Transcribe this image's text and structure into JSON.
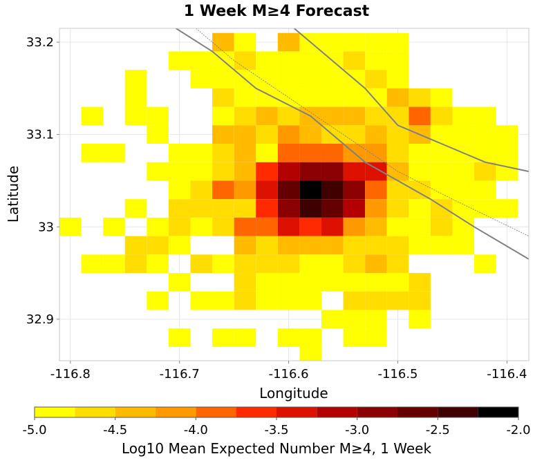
{
  "chart_data": {
    "type": "heatmap",
    "title": "1 Week M≥4 Forecast",
    "xlabel": "Longitude",
    "ylabel": "Latitude",
    "xlim": [
      -116.81,
      -116.38
    ],
    "ylim": [
      32.855,
      33.215
    ],
    "xticks": [
      -116.8,
      -116.7,
      -116.6,
      -116.5,
      -116.4
    ],
    "xtick_labels": [
      "-116.8",
      "-116.7",
      "-116.6",
      "-116.5",
      "-116.4"
    ],
    "yticks": [
      32.9,
      33.0,
      33.1,
      33.2
    ],
    "ytick_labels": [
      "32.9",
      "33",
      "33.1",
      "33.2"
    ],
    "grid": true,
    "cell_size_deg": 0.02,
    "grid_origin": {
      "lon": -116.81,
      "lat": 33.21
    },
    "grid_columns": 21,
    "value_legend": {
      "0": "below -5.0 (no color)",
      "1": "-5.0 to -4.75",
      "12": "-2.25 to -2.0"
    },
    "grid_rows": [
      [
        0,
        0,
        0,
        0,
        0,
        0,
        0,
        3,
        1,
        0,
        3,
        1,
        1,
        1,
        1,
        1,
        0,
        0,
        0,
        0,
        0
      ],
      [
        0,
        0,
        0,
        0,
        0,
        1,
        1,
        1,
        2,
        1,
        1,
        1,
        1,
        2,
        1,
        1,
        0,
        0,
        0,
        0,
        0
      ],
      [
        0,
        0,
        0,
        1,
        0,
        0,
        1,
        1,
        1,
        1,
        1,
        1,
        1,
        1,
        2,
        1,
        0,
        0,
        0,
        0,
        0
      ],
      [
        0,
        0,
        0,
        1,
        0,
        0,
        0,
        2,
        1,
        1,
        1,
        1,
        1,
        1,
        1,
        3,
        2,
        1,
        0,
        0,
        0
      ],
      [
        0,
        1,
        0,
        1,
        1,
        0,
        0,
        1,
        2,
        3,
        2,
        3,
        3,
        3,
        2,
        2,
        5,
        2,
        1,
        1,
        0
      ],
      [
        0,
        0,
        0,
        0,
        1,
        0,
        0,
        3,
        3,
        2,
        4,
        3,
        2,
        2,
        3,
        2,
        3,
        1,
        1,
        1,
        1
      ],
      [
        0,
        1,
        1,
        0,
        0,
        1,
        1,
        2,
        3,
        1,
        5,
        5,
        5,
        4,
        4,
        2,
        1,
        1,
        1,
        1,
        1
      ],
      [
        0,
        0,
        0,
        0,
        1,
        1,
        1,
        2,
        3,
        6,
        8,
        9,
        9,
        7,
        7,
        3,
        1,
        1,
        1,
        2,
        1
      ],
      [
        0,
        0,
        0,
        0,
        0,
        1,
        2,
        5,
        4,
        7,
        10,
        12,
        11,
        9,
        5,
        2,
        2,
        1,
        1,
        1,
        0
      ],
      [
        0,
        0,
        0,
        1,
        0,
        2,
        2,
        2,
        2,
        6,
        9,
        11,
        10,
        8,
        4,
        2,
        1,
        2,
        1,
        1,
        1
      ],
      [
        1,
        0,
        1,
        0,
        1,
        2,
        1,
        2,
        5,
        5,
        7,
        6,
        7,
        4,
        3,
        1,
        1,
        2,
        1,
        0,
        0
      ],
      [
        0,
        0,
        0,
        2,
        2,
        1,
        0,
        0,
        3,
        2,
        3,
        3,
        3,
        2,
        2,
        2,
        1,
        1,
        1,
        0,
        0
      ],
      [
        0,
        1,
        1,
        2,
        1,
        0,
        2,
        1,
        2,
        2,
        2,
        1,
        1,
        2,
        3,
        2,
        0,
        0,
        0,
        1,
        0
      ],
      [
        0,
        0,
        0,
        0,
        0,
        1,
        0,
        0,
        2,
        1,
        1,
        1,
        1,
        1,
        1,
        1,
        2,
        0,
        0,
        0,
        0
      ],
      [
        0,
        0,
        0,
        0,
        1,
        0,
        1,
        1,
        2,
        1,
        1,
        1,
        0,
        2,
        2,
        2,
        2,
        0,
        0,
        0,
        0
      ],
      [
        0,
        0,
        0,
        0,
        0,
        0,
        0,
        0,
        0,
        0,
        0,
        0,
        1,
        1,
        1,
        0,
        1,
        0,
        0,
        0,
        0
      ],
      [
        0,
        0,
        0,
        0,
        0,
        1,
        0,
        1,
        1,
        0,
        1,
        1,
        0,
        1,
        1,
        0,
        0,
        0,
        0,
        0,
        0
      ],
      [
        0,
        0,
        0,
        0,
        0,
        0,
        0,
        0,
        0,
        0,
        0,
        1,
        0,
        0,
        0,
        0,
        0,
        0,
        0,
        0,
        0
      ]
    ],
    "faults": [
      {
        "style": "thick",
        "points": [
          [
            -116.71,
            33.22
          ],
          [
            -116.67,
            33.19
          ],
          [
            -116.63,
            33.15
          ],
          [
            -116.58,
            33.12
          ],
          [
            -116.53,
            33.07
          ],
          [
            -116.47,
            33.03
          ],
          [
            -116.43,
            33.0
          ],
          [
            -116.38,
            32.965
          ]
        ]
      },
      {
        "style": "thick",
        "points": [
          [
            -116.6,
            33.22
          ],
          [
            -116.57,
            33.19
          ],
          [
            -116.53,
            33.15
          ],
          [
            -116.5,
            33.11
          ],
          [
            -116.46,
            33.09
          ],
          [
            -116.42,
            33.07
          ],
          [
            -116.38,
            33.06
          ]
        ]
      },
      {
        "style": "thin",
        "points": [
          [
            -116.69,
            33.22
          ],
          [
            -116.65,
            33.18
          ],
          [
            -116.6,
            33.14
          ],
          [
            -116.55,
            33.1
          ],
          [
            -116.5,
            33.06
          ],
          [
            -116.45,
            33.03
          ],
          [
            -116.38,
            32.99
          ]
        ]
      }
    ],
    "colorbar": {
      "label": "Log10 Mean Expected Number M≥4, 1 Week",
      "min": -5.0,
      "max": -2.0,
      "step": 0.25,
      "tick_values": [
        -5.0,
        -4.5,
        -4.0,
        -3.5,
        -3.0,
        -2.5,
        -2.0
      ],
      "tick_labels": [
        "-5.0",
        "-4.5",
        "-4.0",
        "-3.5",
        "-3.0",
        "-2.5",
        "-2.0"
      ],
      "colors": [
        "#ffff00",
        "#ffdd00",
        "#ffbb00",
        "#ff9900",
        "#ff6600",
        "#ff2a00",
        "#dd1100",
        "#b30000",
        "#8b0000",
        "#650000",
        "#3f0000",
        "#000000"
      ]
    },
    "fault_color_thick": "#808080",
    "fault_color_thin": "#777777",
    "grid_color": "#e6e6e6",
    "frame_color": "#c8c8c8"
  }
}
